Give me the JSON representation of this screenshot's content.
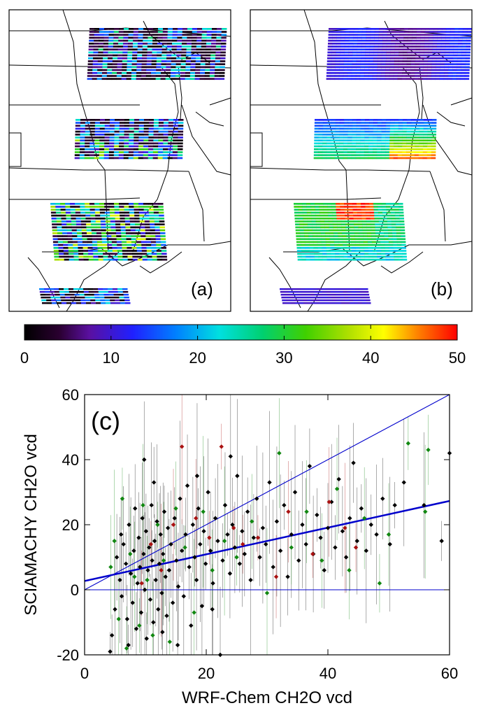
{
  "panels": {
    "a_label": "(a)",
    "b_label": "(b)",
    "c_label": "(c)"
  },
  "colorbar": {
    "min": 0,
    "max": 50,
    "tick_labels": [
      "0",
      "10",
      "20",
      "30",
      "40",
      "50"
    ],
    "colormap": "rainbow (black-purple-blue-cyan-green-yellow-red)"
  },
  "chart_data": {
    "type": "scatter",
    "title": "",
    "xlabel": "WRF-Chem CH2O vcd",
    "ylabel": "SCIAMACHY CH2O vcd",
    "xlim": [
      0,
      60
    ],
    "ylim": [
      -20,
      60
    ],
    "x_ticks": [
      "0",
      "20",
      "40",
      "60"
    ],
    "y_ticks": [
      "-20",
      "0",
      "20",
      "40",
      "60"
    ],
    "grid": false,
    "reference_lines": [
      {
        "name": "1:1",
        "slope": 1,
        "intercept": 0,
        "color": "#0000cc"
      },
      {
        "name": "zero",
        "slope": 0,
        "intercept": 0,
        "color": "#0000cc"
      },
      {
        "name": "regression",
        "slope": 0.41,
        "intercept": 2.7,
        "color": "#0000cc"
      }
    ],
    "series_colors": [
      "#000000",
      "#118811",
      "#aa1111"
    ],
    "series": [
      {
        "color": "#000000",
        "points": [
          [
            4.2,
            -19
          ],
          [
            4.5,
            -14
          ],
          [
            5.0,
            -6
          ],
          [
            5.3,
            10
          ],
          [
            5.8,
            3
          ],
          [
            6.1,
            -2
          ],
          [
            6.4,
            14
          ],
          [
            6.8,
            8
          ],
          [
            7.0,
            -9
          ],
          [
            7.3,
            20
          ],
          [
            7.6,
            5
          ],
          [
            7.9,
            -4
          ],
          [
            8.1,
            12
          ],
          [
            8.3,
            25
          ],
          [
            8.5,
            -12
          ],
          [
            8.7,
            2
          ],
          [
            8.9,
            16
          ],
          [
            9.1,
            7
          ],
          [
            9.3,
            -7
          ],
          [
            9.5,
            22
          ],
          [
            9.7,
            11
          ],
          [
            9.9,
            0
          ],
          [
            10.1,
            18
          ],
          [
            10.2,
            -15
          ],
          [
            10.4,
            6
          ],
          [
            10.6,
            13
          ],
          [
            10.8,
            -3
          ],
          [
            11.0,
            26
          ],
          [
            11.1,
            9
          ],
          [
            11.3,
            -10
          ],
          [
            11.5,
            15
          ],
          [
            11.7,
            3
          ],
          [
            11.9,
            21
          ],
          [
            12.1,
            -6
          ],
          [
            12.3,
            8
          ],
          [
            12.5,
            17
          ],
          [
            12.7,
            -1
          ],
          [
            12.9,
            11
          ],
          [
            13.1,
            24
          ],
          [
            13.3,
            4
          ],
          [
            13.5,
            -8
          ],
          [
            13.7,
            19
          ],
          [
            13.9,
            6
          ],
          [
            14.2,
            14
          ],
          [
            14.5,
            -4
          ],
          [
            14.8,
            22
          ],
          [
            15.1,
            9
          ],
          [
            15.4,
            1
          ],
          [
            15.7,
            28
          ],
          [
            16.0,
            12
          ],
          [
            16.3,
            -2
          ],
          [
            16.6,
            17
          ],
          [
            16.9,
            32
          ],
          [
            17.2,
            7
          ],
          [
            17.5,
            -11
          ],
          [
            17.8,
            20
          ],
          [
            18.1,
            10
          ],
          [
            18.4,
            3
          ],
          [
            18.7,
            25
          ],
          [
            19.0,
            14
          ],
          [
            19.3,
            -5
          ],
          [
            19.6,
            18
          ],
          [
            19.9,
            8
          ],
          [
            20.3,
            30
          ],
          [
            20.7,
            12
          ],
          [
            21.1,
            2
          ],
          [
            21.5,
            22
          ],
          [
            21.9,
            15
          ],
          [
            22.3,
            -20
          ],
          [
            22.7,
            9
          ],
          [
            23.1,
            26
          ],
          [
            23.5,
            17
          ],
          [
            23.9,
            5
          ],
          [
            24.3,
            20
          ],
          [
            24.7,
            13
          ],
          [
            25.1,
            35
          ],
          [
            25.5,
            8
          ],
          [
            25.9,
            18
          ],
          [
            26.3,
            11
          ],
          [
            26.8,
            24
          ],
          [
            27.3,
            3
          ],
          [
            27.8,
            16
          ],
          [
            28.3,
            28
          ],
          [
            28.8,
            10
          ],
          [
            29.3,
            19
          ],
          [
            29.8,
            14
          ],
          [
            30.4,
            33
          ],
          [
            31.0,
            7
          ],
          [
            31.6,
            21
          ],
          [
            32.2,
            12
          ],
          [
            32.8,
            26
          ],
          [
            33.4,
            4
          ],
          [
            34.0,
            17
          ],
          [
            34.6,
            30
          ],
          [
            35.2,
            9
          ],
          [
            35.8,
            20
          ],
          [
            36.4,
            14
          ],
          [
            37.0,
            38
          ],
          [
            37.6,
            11
          ],
          [
            38.2,
            23
          ],
          [
            38.8,
            16
          ],
          [
            39.4,
            6
          ],
          [
            40.0,
            19
          ],
          [
            40.6,
            27
          ],
          [
            41.2,
            13
          ],
          [
            41.8,
            34
          ],
          [
            42.4,
            18
          ],
          [
            43.0,
            10
          ],
          [
            43.6,
            22
          ],
          [
            44.2,
            39
          ],
          [
            44.8,
            15
          ],
          [
            45.5,
            25
          ],
          [
            46.3,
            12
          ],
          [
            47.1,
            20
          ],
          [
            48.0,
            17
          ],
          [
            49.0,
            28
          ],
          [
            50.2,
            14
          ],
          [
            51.0,
            26
          ],
          [
            52.5,
            33
          ],
          [
            55.8,
            26
          ],
          [
            58.7,
            15
          ],
          [
            60.0,
            42
          ],
          [
            6.0,
            17
          ],
          [
            7.2,
            -17
          ],
          [
            9.8,
            40
          ],
          [
            11.4,
            33
          ],
          [
            12.8,
            -13
          ],
          [
            15.3,
            -17
          ],
          [
            18.5,
            35
          ],
          [
            21.0,
            -6
          ],
          [
            24.0,
            41
          ]
        ]
      },
      {
        "color": "#118811",
        "points": [
          [
            4.3,
            7
          ],
          [
            4.9,
            15
          ],
          [
            5.6,
            -9
          ],
          [
            6.2,
            28
          ],
          [
            6.9,
            -18
          ],
          [
            7.5,
            11
          ],
          [
            8.2,
            4
          ],
          [
            9.0,
            -11
          ],
          [
            9.6,
            26
          ],
          [
            10.3,
            3
          ],
          [
            11.2,
            -14
          ],
          [
            12.0,
            20
          ],
          [
            13.0,
            9
          ],
          [
            14.0,
            -16
          ],
          [
            15.0,
            25
          ],
          [
            16.5,
            13
          ],
          [
            18.0,
            -7
          ],
          [
            19.5,
            24
          ],
          [
            21.0,
            6
          ],
          [
            23.0,
            15
          ],
          [
            25.0,
            10
          ],
          [
            27.5,
            21
          ],
          [
            30.0,
            -1
          ],
          [
            32.0,
            42
          ],
          [
            34.0,
            13
          ],
          [
            36.5,
            24
          ],
          [
            39.0,
            9
          ],
          [
            41.5,
            31
          ],
          [
            43.5,
            6
          ],
          [
            46.0,
            22
          ],
          [
            48.5,
            2
          ],
          [
            50.0,
            17
          ],
          [
            53.2,
            45
          ],
          [
            56.0,
            24
          ],
          [
            56.5,
            43
          ]
        ]
      },
      {
        "color": "#aa1111",
        "points": [
          [
            9.4,
            2
          ],
          [
            10.9,
            14
          ],
          [
            12.6,
            6
          ],
          [
            14.6,
            20
          ],
          [
            16.0,
            44
          ],
          [
            18.3,
            22
          ],
          [
            20.5,
            16
          ],
          [
            22.5,
            44
          ],
          [
            24.5,
            19
          ],
          [
            26.0,
            14
          ],
          [
            28.5,
            16
          ],
          [
            31.5,
            4
          ],
          [
            33.5,
            24
          ],
          [
            37.5,
            11
          ],
          [
            40.2,
            27
          ],
          [
            42.8,
            19
          ],
          [
            44.6,
            13
          ]
        ]
      }
    ]
  }
}
